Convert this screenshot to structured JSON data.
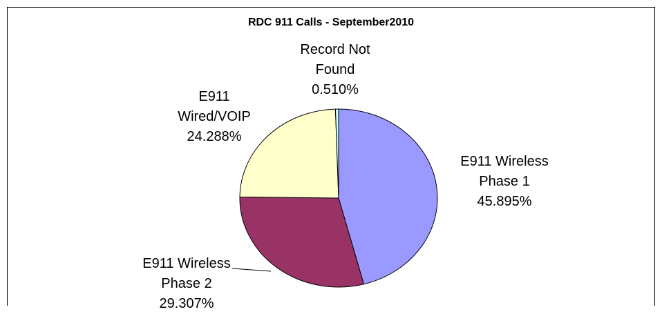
{
  "chart_data": {
    "type": "pie",
    "title": "RDC 911 Calls - September2010",
    "categories": [
      "E911 Wireless Phase 1",
      "E911 Wireless Phase 2",
      "E911 Wired/VOIP",
      "Record Not Found"
    ],
    "values": [
      45.895,
      29.307,
      24.288,
      0.51
    ],
    "value_labels": [
      "45.895%",
      "29.307%",
      "24.288%",
      "0.510%"
    ],
    "colors": [
      "#9999ff",
      "#993366",
      "#ffffcc",
      "#ccffff"
    ]
  }
}
